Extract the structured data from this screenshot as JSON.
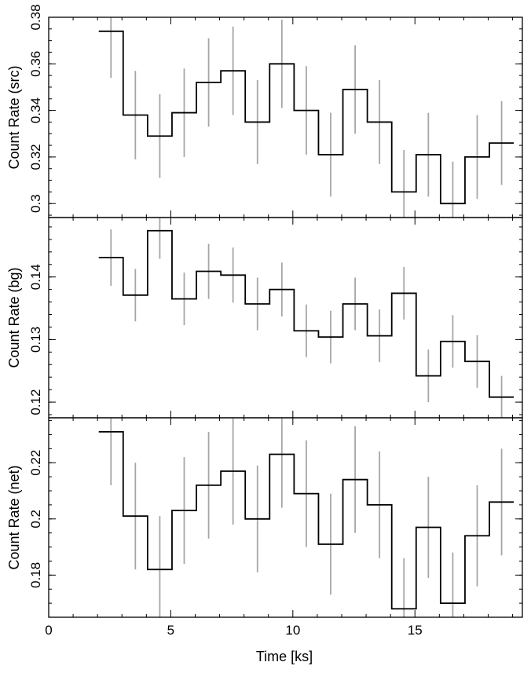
{
  "figure": {
    "xlabel": "Time [ks]",
    "xlim": [
      0,
      19.4
    ],
    "x_major_ticks": [
      0,
      5,
      10,
      15
    ],
    "x_minor_step": 1,
    "colors": {
      "step": "#000000",
      "errorbar": "#a6a6a6",
      "frame": "#000000"
    }
  },
  "chart_data": [
    {
      "type": "line",
      "drawstyle": "steps-mid",
      "ylabel": "Count Rate (src)",
      "ylim": [
        0.294,
        0.38
      ],
      "y_major_ticks": [
        0.3,
        0.32,
        0.34,
        0.36,
        0.38
      ],
      "y_tick_labels": [
        "0.3",
        "0.32",
        "0.34",
        "0.36",
        "0.38"
      ],
      "y_minor_step": 0.005,
      "bin_edges": [
        2.05,
        3.05,
        4.05,
        5.05,
        6.05,
        7.05,
        8.05,
        9.05,
        10.05,
        11.05,
        12.05,
        13.05,
        14.05,
        15.05,
        16.05,
        17.05,
        18.05,
        19.05
      ],
      "x": [
        2.55,
        3.55,
        4.55,
        5.55,
        6.55,
        7.55,
        8.55,
        9.55,
        10.55,
        11.55,
        12.55,
        13.55,
        14.55,
        15.55,
        16.55,
        17.55,
        18.55
      ],
      "values": [
        0.374,
        0.338,
        0.329,
        0.339,
        0.352,
        0.357,
        0.335,
        0.36,
        0.34,
        0.321,
        0.349,
        0.335,
        0.305,
        0.321,
        0.3,
        0.32,
        0.326
      ],
      "errors": [
        0.02,
        0.019,
        0.018,
        0.019,
        0.019,
        0.019,
        0.018,
        0.019,
        0.019,
        0.018,
        0.019,
        0.018,
        0.018,
        0.018,
        0.018,
        0.018,
        0.018
      ]
    },
    {
      "type": "line",
      "drawstyle": "steps-mid",
      "ylabel": "Count Rate (bg)",
      "ylim": [
        0.1175,
        0.1495
      ],
      "y_major_ticks": [
        0.12,
        0.13,
        0.14
      ],
      "y_tick_labels": [
        "0.12",
        "0.13",
        "0.14"
      ],
      "y_minor_step": 0.002,
      "bin_edges": [
        2.05,
        3.05,
        4.05,
        5.05,
        6.05,
        7.05,
        8.05,
        9.05,
        10.05,
        11.05,
        12.05,
        13.05,
        14.05,
        15.05,
        16.05,
        17.05,
        18.05,
        19.05
      ],
      "x": [
        2.55,
        3.55,
        4.55,
        5.55,
        6.55,
        7.55,
        8.55,
        9.55,
        10.55,
        11.55,
        12.55,
        13.55,
        14.55,
        15.55,
        16.55,
        17.55,
        18.55
      ],
      "values": [
        0.1431,
        0.1371,
        0.1474,
        0.1365,
        0.1409,
        0.1403,
        0.1357,
        0.138,
        0.1314,
        0.1304,
        0.1357,
        0.1306,
        0.1374,
        0.1242,
        0.1297,
        0.1265,
        0.1208
      ],
      "errors": [
        0.0045,
        0.0042,
        0.0045,
        0.0042,
        0.0044,
        0.0044,
        0.0042,
        0.0043,
        0.0042,
        0.0042,
        0.0042,
        0.0042,
        0.0042,
        0.0042,
        0.0042,
        0.0042,
        0.0034
      ]
    },
    {
      "type": "line",
      "drawstyle": "steps-mid",
      "ylabel": "Count Rate (net)",
      "ylim": [
        0.165,
        0.236
      ],
      "y_major_ticks": [
        0.18,
        0.2,
        0.22
      ],
      "y_tick_labels": [
        "0.18",
        "0.2",
        "0.22"
      ],
      "y_minor_step": 0.005,
      "bin_edges": [
        2.05,
        3.05,
        4.05,
        5.05,
        6.05,
        7.05,
        8.05,
        9.05,
        10.05,
        11.05,
        12.05,
        13.05,
        14.05,
        15.05,
        16.05,
        17.05,
        18.05,
        19.05
      ],
      "x": [
        2.55,
        3.55,
        4.55,
        5.55,
        6.55,
        7.55,
        8.55,
        9.55,
        10.55,
        11.55,
        12.55,
        13.55,
        14.55,
        15.55,
        16.55,
        17.55,
        18.55
      ],
      "values": [
        0.231,
        0.201,
        0.182,
        0.203,
        0.212,
        0.217,
        0.2,
        0.223,
        0.209,
        0.191,
        0.214,
        0.205,
        0.168,
        0.197,
        0.17,
        0.194,
        0.206
      ],
      "errors": [
        0.019,
        0.019,
        0.019,
        0.019,
        0.019,
        0.019,
        0.019,
        0.019,
        0.019,
        0.018,
        0.019,
        0.019,
        0.018,
        0.018,
        0.018,
        0.018,
        0.019
      ]
    }
  ]
}
